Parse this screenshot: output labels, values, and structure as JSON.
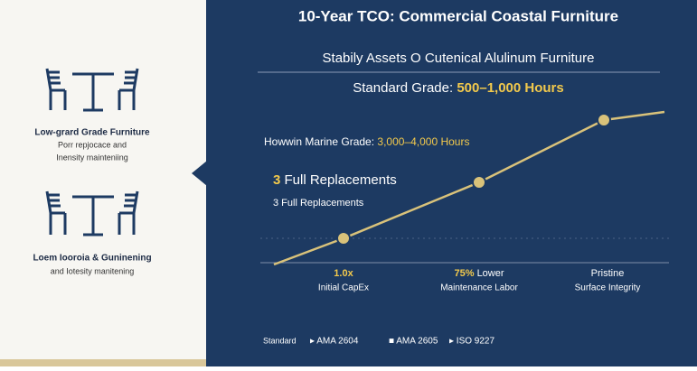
{
  "header": {
    "title": "10-Year TCO: Commercial Coastal Furniture"
  },
  "left_panel": {
    "items": [
      {
        "title": "Low-grard Grade Furniture",
        "lines": [
          "Porr repjocace and",
          "Inensity mainteniing"
        ]
      },
      {
        "title": "Loem Iooroia & Guninening",
        "lines": [
          "and Iotesity manitening"
        ]
      }
    ]
  },
  "main": {
    "subtitle": "Stabily Assets O Cutenical Alulinum Furniture",
    "standard": {
      "label": "Standard Grade:",
      "value": "500–1,000 Hours"
    },
    "marine": {
      "label": "Howwin Marine Grade:",
      "value": "3,000–4,000 Hours"
    },
    "replacements": {
      "number": "3",
      "text": "Full Replacements"
    },
    "replacements_small": "3 Full Replacements",
    "labels": [
      {
        "highlight": "1.0x",
        "text": "Initial CapEx"
      },
      {
        "highlight": "75%",
        "rest": "Lower",
        "text": "Maintenance Labor"
      },
      {
        "highlight": "Pristine",
        "text": "Surface Integrity"
      }
    ],
    "footer": [
      "Standard",
      "▸ AMA 2604",
      "■ AMA 2605",
      "▸ ISO 9227"
    ]
  }
}
